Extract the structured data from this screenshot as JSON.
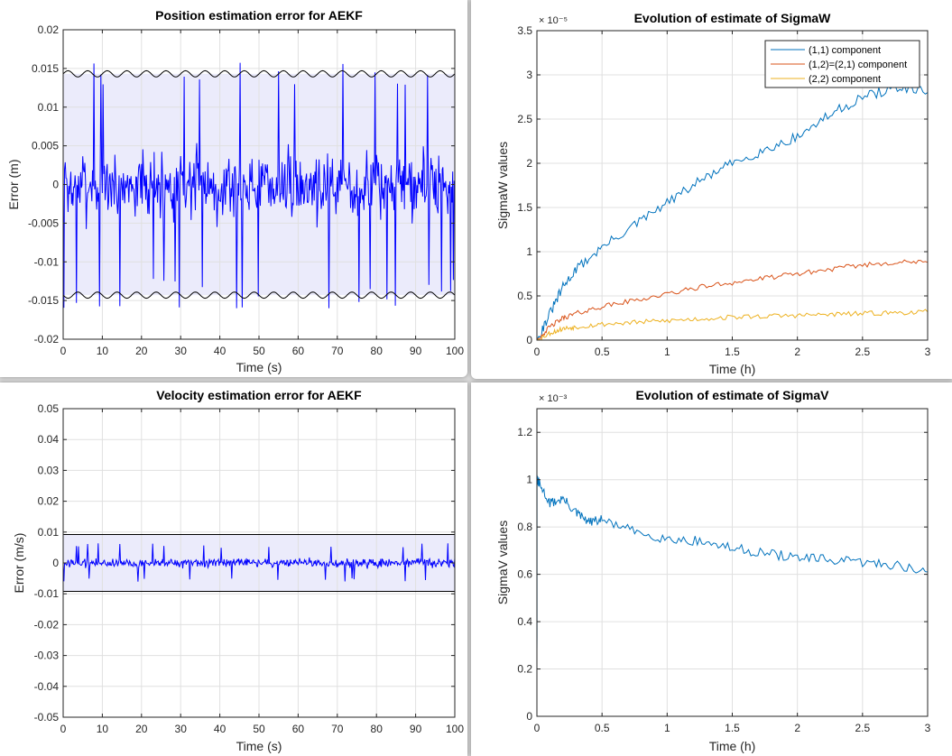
{
  "colors": {
    "blue_trace": "#0000ff",
    "series_1": "#0072bd",
    "series_2": "#d95319",
    "series_3": "#edb120",
    "band_fill": "#ebebfb",
    "grid": "#e0e0e0"
  },
  "chart_data": [
    {
      "id": "position",
      "type": "line",
      "title": "Position estimation error for AEKF",
      "xlabel": "Time (s)",
      "ylabel": "Error (m)",
      "xlim": [
        0,
        100
      ],
      "ylim": [
        -0.02,
        0.02
      ],
      "xticks": [
        0,
        10,
        20,
        30,
        40,
        50,
        60,
        70,
        80,
        90,
        100
      ],
      "yticks": [
        -0.02,
        -0.015,
        -0.01,
        -0.005,
        0,
        0.005,
        0.01,
        0.015,
        0.02
      ],
      "ytick_labels": [
        "-0.02",
        "-0.015",
        "-0.01",
        "-0.005",
        "0",
        "0.005",
        "0.01",
        "0.015",
        "0.02"
      ],
      "grid": true,
      "bound": {
        "center": 0.0143,
        "ripple": 0.0004,
        "period": 5
      },
      "noise": {
        "amplitude": 0.0065,
        "peak": 0.016,
        "seed": 7
      }
    },
    {
      "id": "sigmaw",
      "type": "line",
      "title": "Evolution of estimate of SigmaW",
      "xlabel": "Time (h)",
      "ylabel": "SigmaW values",
      "exponent_label": "× 10⁻⁵",
      "xlim": [
        0,
        3
      ],
      "ylim": [
        0,
        3.5
      ],
      "xticks": [
        0,
        0.5,
        1,
        1.5,
        2,
        2.5,
        3
      ],
      "yticks": [
        0,
        0.5,
        1,
        1.5,
        2,
        2.5,
        3,
        3.5
      ],
      "grid": true,
      "legend": "top-right",
      "series": [
        {
          "name": "(1,1) component",
          "x": [
            0,
            0.1,
            0.2,
            0.3,
            0.5,
            0.75,
            1.0,
            1.25,
            1.5,
            1.75,
            2.0,
            2.25,
            2.5,
            2.75,
            3.0
          ],
          "y": [
            0,
            0.3,
            0.6,
            0.8,
            1.05,
            1.3,
            1.55,
            1.8,
            2.0,
            2.15,
            2.3,
            2.55,
            2.75,
            2.85,
            2.8
          ]
        },
        {
          "name": "(1,2)=(2,1) component",
          "x": [
            0,
            0.1,
            0.2,
            0.3,
            0.5,
            0.75,
            1.0,
            1.25,
            1.5,
            1.75,
            2.0,
            2.25,
            2.5,
            2.75,
            3.0
          ],
          "y": [
            0,
            0.15,
            0.25,
            0.3,
            0.38,
            0.45,
            0.52,
            0.6,
            0.65,
            0.7,
            0.75,
            0.8,
            0.85,
            0.88,
            0.88
          ]
        },
        {
          "name": "(2,2) component",
          "x": [
            0,
            0.1,
            0.2,
            0.3,
            0.5,
            0.75,
            1.0,
            1.25,
            1.5,
            1.75,
            2.0,
            2.25,
            2.5,
            2.75,
            3.0
          ],
          "y": [
            0,
            0.08,
            0.13,
            0.15,
            0.18,
            0.2,
            0.22,
            0.24,
            0.26,
            0.27,
            0.28,
            0.29,
            0.3,
            0.31,
            0.32
          ]
        }
      ]
    },
    {
      "id": "velocity",
      "type": "line",
      "title": "Velocity estimation error for AEKF",
      "xlabel": "Time (s)",
      "ylabel": "Error (m/s)",
      "xlim": [
        0,
        100
      ],
      "ylim": [
        -0.05,
        0.05
      ],
      "xticks": [
        0,
        10,
        20,
        30,
        40,
        50,
        60,
        70,
        80,
        90,
        100
      ],
      "yticks": [
        -0.05,
        -0.04,
        -0.03,
        -0.02,
        -0.01,
        0,
        0.01,
        0.02,
        0.03,
        0.04,
        0.05
      ],
      "ytick_labels": [
        "-0.05",
        "-0.04",
        "-0.03",
        "-0.02",
        "-0.01",
        "0",
        "0.01",
        "0.02",
        "0.03",
        "0.04",
        "0.05"
      ],
      "grid": true,
      "bound": {
        "center": 0.0092,
        "ripple": 0.0,
        "period": 5
      },
      "noise": {
        "amplitude": 0.0022,
        "peak": 0.0065,
        "seed": 19
      }
    },
    {
      "id": "sigmav",
      "type": "line",
      "title": "Evolution of estimate of SigmaV",
      "xlabel": "Time (h)",
      "ylabel": "SigmaV values",
      "exponent_label": "× 10⁻³",
      "xlim": [
        0,
        3
      ],
      "ylim": [
        0,
        1.3
      ],
      "xticks": [
        0,
        0.5,
        1,
        1.5,
        2,
        2.5,
        3
      ],
      "yticks": [
        0,
        0.2,
        0.4,
        0.6,
        0.8,
        1,
        1.2
      ],
      "grid": true,
      "series": [
        {
          "name": "",
          "x": [
            0,
            0.001,
            0.02,
            0.1,
            0.2,
            0.3,
            0.4,
            0.5,
            0.75,
            1.0,
            1.25,
            1.5,
            1.75,
            2.0,
            2.25,
            2.5,
            2.75,
            3.0
          ],
          "y": [
            0,
            1.0,
            0.98,
            0.9,
            0.92,
            0.86,
            0.82,
            0.83,
            0.78,
            0.75,
            0.74,
            0.71,
            0.69,
            0.67,
            0.66,
            0.65,
            0.64,
            0.61
          ]
        }
      ]
    }
  ]
}
